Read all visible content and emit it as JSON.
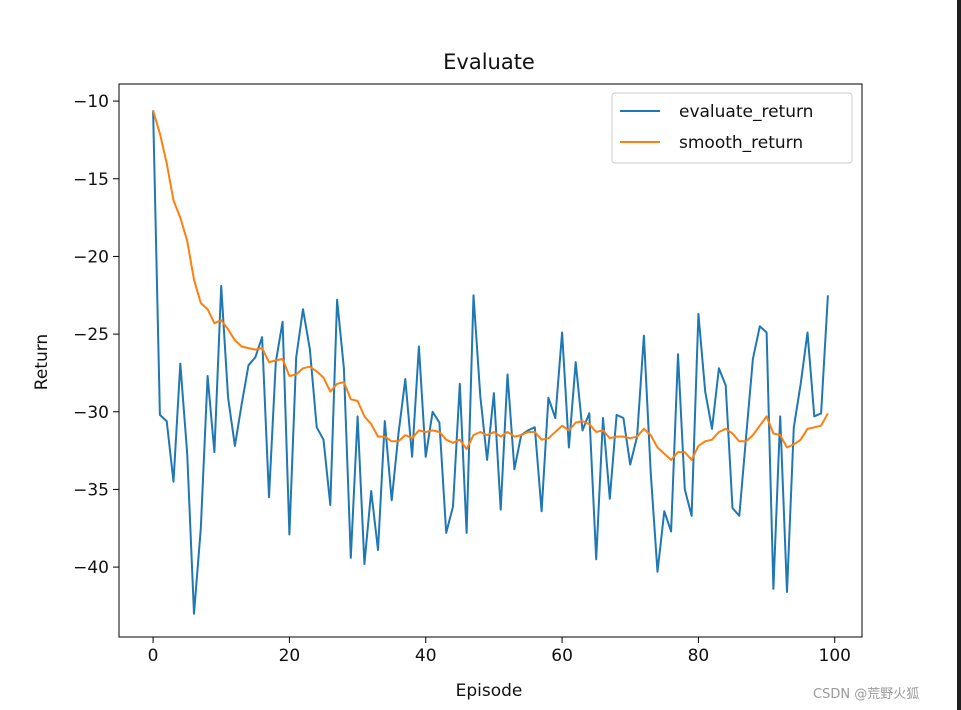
{
  "chart_data": {
    "type": "line",
    "title": "Evaluate",
    "xlabel": "Episode",
    "ylabel": "Return",
    "xlim": [
      -5,
      104
    ],
    "ylim": [
      -44.5,
      -8.9
    ],
    "xticks": [
      0,
      20,
      40,
      60,
      80,
      100
    ],
    "yticks": [
      -10,
      -15,
      -20,
      -25,
      -30,
      -35,
      -40
    ],
    "x_tick_labels": [
      "0",
      "20",
      "40",
      "60",
      "80",
      "100"
    ],
    "y_tick_labels": [
      "−10",
      "−15",
      "−20",
      "−25",
      "−30",
      "−35",
      "−40"
    ],
    "grid": false,
    "legend_position": "top-right",
    "series": [
      {
        "name": "evaluate_return",
        "color": "#1f77b4",
        "x_start": 0,
        "values": [
          -10.6,
          -30.2,
          -30.6,
          -34.5,
          -26.9,
          -32.7,
          -43.0,
          -37.5,
          -27.7,
          -32.6,
          -21.9,
          -29.1,
          -32.2,
          -29.5,
          -27.0,
          -26.5,
          -25.2,
          -35.5,
          -26.8,
          -24.2,
          -37.9,
          -26.5,
          -23.4,
          -26.0,
          -31.0,
          -31.8,
          -36.0,
          -22.8,
          -27.2,
          -39.4,
          -30.3,
          -39.8,
          -35.1,
          -38.9,
          -30.6,
          -35.7,
          -31.4,
          -27.9,
          -32.9,
          -25.8,
          -32.9,
          -30.0,
          -30.7,
          -37.8,
          -36.1,
          -28.2,
          -37.8,
          -22.5,
          -29.0,
          -33.1,
          -28.8,
          -36.3,
          -27.6,
          -33.7,
          -31.5,
          -31.2,
          -31.0,
          -36.4,
          -29.1,
          -30.4,
          -24.9,
          -32.3,
          -26.8,
          -31.2,
          -30.1,
          -39.5,
          -30.4,
          -35.6,
          -30.2,
          -30.4,
          -33.4,
          -31.6,
          -25.1,
          -33.9,
          -40.3,
          -36.4,
          -37.7,
          -26.3,
          -35.0,
          -36.7,
          -23.7,
          -28.7,
          -31.1,
          -27.2,
          -28.3,
          -36.2,
          -36.7,
          -31.6,
          -26.6,
          -24.5,
          -24.9,
          -41.4,
          -30.3,
          -41.6,
          -31.0,
          -28.2,
          -24.9,
          -30.3,
          -30.1,
          -22.5
        ]
      },
      {
        "name": "smooth_return",
        "color": "#ff7f0e",
        "x_start": 0,
        "values": [
          -10.6,
          -12.1,
          -14.0,
          -16.4,
          -17.5,
          -19.0,
          -21.5,
          -23.0,
          -23.4,
          -24.3,
          -24.1,
          -24.7,
          -25.4,
          -25.8,
          -25.9,
          -26.0,
          -25.9,
          -26.8,
          -26.7,
          -26.6,
          -27.7,
          -27.6,
          -27.2,
          -27.1,
          -27.4,
          -27.8,
          -28.7,
          -28.2,
          -28.1,
          -29.2,
          -29.3,
          -30.3,
          -30.8,
          -31.6,
          -31.6,
          -31.9,
          -31.9,
          -31.5,
          -31.7,
          -31.2,
          -31.3,
          -31.2,
          -31.3,
          -31.8,
          -32.0,
          -31.8,
          -32.4,
          -31.5,
          -31.3,
          -31.5,
          -31.3,
          -31.6,
          -31.3,
          -31.6,
          -31.5,
          -31.3,
          -31.3,
          -31.8,
          -31.7,
          -31.3,
          -30.9,
          -31.2,
          -30.7,
          -30.6,
          -30.8,
          -31.3,
          -31.2,
          -31.7,
          -31.6,
          -31.6,
          -31.7,
          -31.6,
          -31.1,
          -31.5,
          -32.3,
          -32.7,
          -33.1,
          -32.6,
          -32.6,
          -33.1,
          -32.2,
          -31.9,
          -31.8,
          -31.3,
          -31.1,
          -31.4,
          -31.9,
          -31.9,
          -31.5,
          -30.9,
          -30.3,
          -31.4,
          -31.5,
          -32.3,
          -32.1,
          -31.8,
          -31.1,
          -31.0,
          -30.9,
          -30.1
        ]
      }
    ]
  },
  "watermark": "CSDN @荒野火狐"
}
